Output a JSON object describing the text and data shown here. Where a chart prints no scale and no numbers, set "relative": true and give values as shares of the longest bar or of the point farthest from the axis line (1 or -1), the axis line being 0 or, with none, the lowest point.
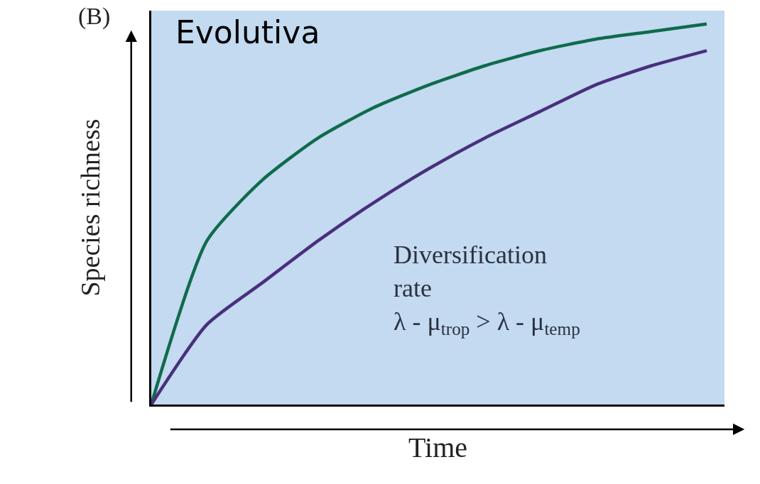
{
  "chart_data": {
    "type": "line",
    "relative": true,
    "xlabel": "Time",
    "ylabel": "Species richness",
    "categories": [
      null,
      null,
      null,
      null,
      null,
      null,
      null,
      null,
      null,
      null,
      null
    ],
    "series": [
      {
        "color": "#0f6b4c",
        "values": [
          0,
          0.43,
          0.59,
          0.7,
          0.78,
          0.84,
          0.89,
          0.93,
          0.96,
          0.98,
          1
        ]
      },
      {
        "color": "#4a2f7e",
        "values": [
          0,
          0.21,
          0.32,
          0.43,
          0.53,
          0.62,
          0.7,
          0.77,
          0.84,
          0.89,
          0.93
        ]
      }
    ],
    "annotations": [
      "(B)",
      "Evolutiva",
      "Diversification\nrate\nλ - μ$_{trop}$ > λ - μ$_{temp}$"
    ],
    "marker": "none",
    "line_style": "solid"
  }
}
